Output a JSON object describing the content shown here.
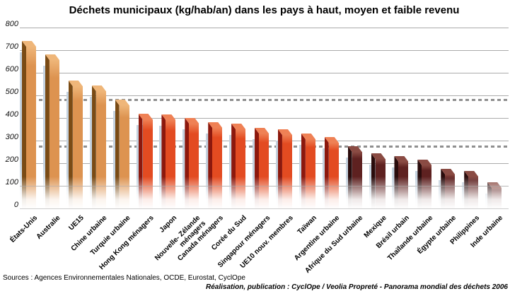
{
  "title": "Déchets municipaux (kg/hab/an) dans les pays à haut, moyen et faible revenu",
  "footer": {
    "sources": "Sources : Agences Environnementales Nationales, OCDE, Eurostat, CyclOpe",
    "credit": "Réalisation, publication : CyclOpe / Veolia Propreté - Panorama mondial des déchets 2006"
  },
  "chart_data": {
    "type": "bar",
    "title": "Déchets municipaux (kg/hab/an) dans les pays à haut, moyen et faible revenu",
    "categories": [
      "États-Unis",
      "Australie",
      "UE15",
      "Chine urbaine",
      "Turquie urbaine",
      "Hong Kong ménagers",
      "Japon",
      "Nouvelle- Zélande\nménagers",
      "Canada ménagers",
      "Corée du Sud",
      "Singapour ménagers",
      "UE10 nouv. membres",
      "Taïwan",
      "Argentine urbaine",
      "Afrique du Sud urbaine",
      "Mexique",
      "Brésil urbain",
      "Thaïlande urbaine",
      "Égypte urbaine",
      "Philippines",
      "Inde urbaine"
    ],
    "values": [
      740,
      680,
      565,
      545,
      480,
      420,
      415,
      400,
      380,
      375,
      355,
      350,
      330,
      315,
      275,
      245,
      230,
      215,
      175,
      165,
      115
    ],
    "groups": [
      "haut",
      "haut",
      "haut",
      "haut",
      "haut",
      "moyen",
      "moyen",
      "moyen",
      "moyen",
      "moyen",
      "moyen",
      "moyen",
      "moyen",
      "moyen",
      "faible",
      "faible",
      "faible",
      "faible",
      "faible",
      "faible",
      "faible"
    ],
    "group_colors": {
      "haut": {
        "front": "#DD9350",
        "side": "#7A4B15",
        "top": "#EFB679"
      },
      "moyen": {
        "front": "#E34B21",
        "side": "#8C180D",
        "top": "#EF8155"
      },
      "faible": {
        "front": "#5E2120",
        "side": "#2A0C0C",
        "top": "#8A4B43"
      }
    },
    "shadow_color": "#C4D2DF",
    "grid_color": "#ababab",
    "dash_color": "#8f8f8f",
    "reference_lines": [
      480,
      275
    ],
    "xlabel": "",
    "ylabel": "",
    "ylim": [
      0,
      800
    ],
    "ytick_interval": 100,
    "grid": true,
    "legend": false
  }
}
